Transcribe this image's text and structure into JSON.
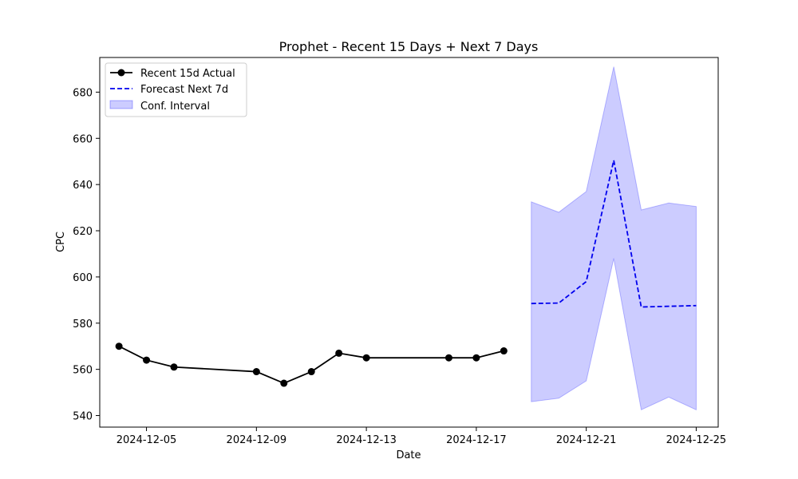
{
  "chart_data": {
    "type": "line",
    "title": "Prophet - Recent 15 Days + Next 7 Days",
    "xlabel": "Date",
    "ylabel": "CPC",
    "xlim": [
      "2024-12-03",
      "2024-12-26"
    ],
    "ylim": [
      535,
      695
    ],
    "x_ticks": [
      "2024-12-05",
      "2024-12-09",
      "2024-12-13",
      "2024-12-17",
      "2024-12-21",
      "2024-12-25"
    ],
    "y_ticks": [
      540,
      560,
      580,
      600,
      620,
      640,
      660,
      680
    ],
    "legend_position": "upper-left",
    "grid": false,
    "series": [
      {
        "name": "Recent 15d Actual",
        "style": "solid-with-markers",
        "color": "#000000",
        "points": [
          {
            "x": "2024-12-04",
            "y": 570
          },
          {
            "x": "2024-12-05",
            "y": 564
          },
          {
            "x": "2024-12-06",
            "y": 561
          },
          {
            "x": "2024-12-09",
            "y": 559
          },
          {
            "x": "2024-12-10",
            "y": 554
          },
          {
            "x": "2024-12-11",
            "y": 559
          },
          {
            "x": "2024-12-12",
            "y": 567
          },
          {
            "x": "2024-12-13",
            "y": 565
          },
          {
            "x": "2024-12-16",
            "y": 565
          },
          {
            "x": "2024-12-17",
            "y": 565
          },
          {
            "x": "2024-12-18",
            "y": 568
          }
        ]
      },
      {
        "name": "Forecast Next 7d",
        "style": "dashed",
        "color": "#0000ee",
        "points": [
          {
            "x": "2024-12-19",
            "y": 588.5
          },
          {
            "x": "2024-12-20",
            "y": 588.7
          },
          {
            "x": "2024-12-21",
            "y": 598
          },
          {
            "x": "2024-12-22",
            "y": 650.5
          },
          {
            "x": "2024-12-23",
            "y": 587
          },
          {
            "x": "2024-12-24",
            "y": 587.3
          },
          {
            "x": "2024-12-25",
            "y": 587.6
          }
        ]
      }
    ],
    "band": {
      "name": "Conf. Interval",
      "color": "#0000ff",
      "points": [
        {
          "x": "2024-12-19",
          "lower": 546,
          "upper": 632.5
        },
        {
          "x": "2024-12-20",
          "lower": 547.5,
          "upper": 628
        },
        {
          "x": "2024-12-21",
          "lower": 555,
          "upper": 637
        },
        {
          "x": "2024-12-22",
          "lower": 608,
          "upper": 691
        },
        {
          "x": "2024-12-23",
          "lower": 542.5,
          "upper": 629
        },
        {
          "x": "2024-12-24",
          "lower": 548,
          "upper": 632
        },
        {
          "x": "2024-12-25",
          "lower": 542.5,
          "upper": 630.5
        }
      ]
    }
  }
}
